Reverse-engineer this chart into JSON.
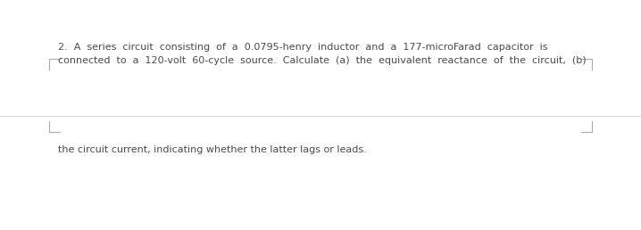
{
  "text_line1": "2.  A  series  circuit  consisting  of  a  0.0795-henry  inductor  and  a  177-microFarad  capacitor  is",
  "text_line2": "connected  to  a  120-volt  60-cycle  source.  Calculate  (a)  the  equivalent  reactance  of  the  circuit,  (b)",
  "text_line3": "the circuit current, indicating whether the latter lags or leads.",
  "bg_color": "#ffffff",
  "text_color": "#4a4a4a",
  "font_size": 8.0,
  "divider_color": "#d8d8d8",
  "bracket_color": "#aaaaaa",
  "bracket_lw": 0.8
}
